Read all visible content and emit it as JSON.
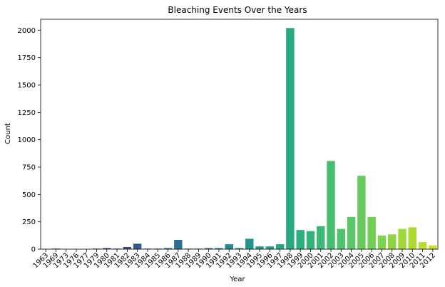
{
  "chart_data": {
    "type": "bar",
    "title": "Bleaching Events Over the Years",
    "xlabel": "Year",
    "ylabel": "Count",
    "ylim": [
      0,
      2100
    ],
    "yticks": [
      0,
      250,
      500,
      750,
      1000,
      1250,
      1500,
      1750,
      2000
    ],
    "grid": false,
    "colormap": "viridis",
    "categories": [
      "1963",
      "1969",
      "1973",
      "1976",
      "1977",
      "1979",
      "1980",
      "1981",
      "1982",
      "1983",
      "1984",
      "1985",
      "1986",
      "1987",
      "1988",
      "1989",
      "1990",
      "1991",
      "1992",
      "1993",
      "1994",
      "1995",
      "1996",
      "1997",
      "1998",
      "1999",
      "2000",
      "2001",
      "2002",
      "2003",
      "2004",
      "2005",
      "2006",
      "2007",
      "2008",
      "2009",
      "2010",
      "2011",
      "2012"
    ],
    "values": [
      2,
      5,
      1,
      1,
      1,
      5,
      10,
      5,
      20,
      50,
      5,
      5,
      10,
      85,
      5,
      5,
      10,
      10,
      45,
      10,
      95,
      25,
      25,
      45,
      2020,
      175,
      165,
      210,
      805,
      185,
      295,
      670,
      295,
      125,
      135,
      185,
      200,
      65,
      35
    ]
  }
}
